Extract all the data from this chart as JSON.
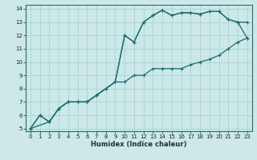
{
  "xlabel": "Humidex (Indice chaleur)",
  "bg_color": "#cce8e8",
  "grid_color": "#a8d4d4",
  "line_color": "#1a6b6b",
  "xlim": [
    -0.5,
    23.5
  ],
  "ylim": [
    4.8,
    14.3
  ],
  "xticks": [
    0,
    1,
    2,
    3,
    4,
    5,
    6,
    7,
    8,
    9,
    10,
    11,
    12,
    13,
    14,
    15,
    16,
    17,
    18,
    19,
    20,
    21,
    22,
    23
  ],
  "yticks": [
    5,
    6,
    7,
    8,
    9,
    10,
    11,
    12,
    13,
    14
  ],
  "line1_x": [
    0,
    1,
    2,
    3,
    4,
    5,
    6,
    7,
    8,
    9,
    10,
    11,
    12,
    13,
    14,
    15,
    16,
    17,
    18,
    19,
    20,
    21,
    22,
    23
  ],
  "line1_y": [
    5.0,
    6.0,
    5.5,
    6.5,
    7.0,
    7.0,
    7.0,
    7.5,
    8.0,
    8.5,
    8.5,
    9.0,
    9.0,
    9.5,
    9.5,
    9.5,
    9.5,
    9.8,
    10.0,
    10.2,
    10.5,
    11.0,
    11.5,
    11.8
  ],
  "line2_x": [
    0,
    1,
    2,
    3,
    4,
    5,
    6,
    7,
    8,
    9,
    10,
    11,
    12,
    13,
    14,
    15,
    16,
    17,
    18,
    19,
    20,
    21,
    22,
    23
  ],
  "line2_y": [
    5.0,
    6.0,
    5.5,
    6.5,
    7.0,
    7.0,
    7.0,
    7.5,
    8.0,
    8.5,
    12.0,
    11.5,
    13.0,
    13.5,
    13.9,
    13.5,
    13.7,
    13.7,
    13.6,
    13.8,
    13.8,
    13.2,
    13.0,
    13.0
  ],
  "line3_x": [
    0,
    2,
    3,
    4,
    5,
    6,
    7,
    9,
    10,
    11,
    12,
    13,
    14,
    15,
    16,
    17,
    18,
    19,
    20,
    21,
    22,
    23
  ],
  "line3_y": [
    5.0,
    5.5,
    6.5,
    7.0,
    7.0,
    7.0,
    7.5,
    8.5,
    12.0,
    11.5,
    13.0,
    13.5,
    13.9,
    13.5,
    13.7,
    13.7,
    13.6,
    13.8,
    13.8,
    13.2,
    13.0,
    11.8
  ]
}
